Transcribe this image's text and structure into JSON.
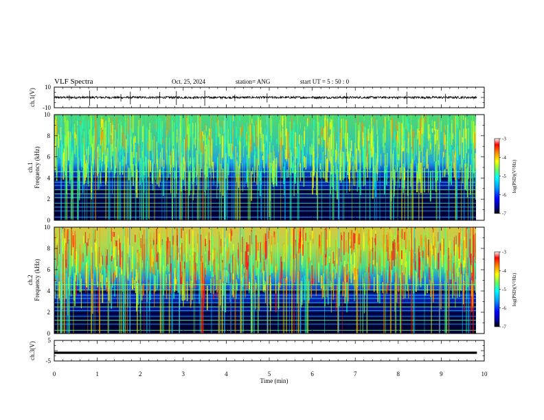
{
  "header": {
    "title": "VLF Spectra",
    "date": "Oct. 25, 2024",
    "station": "station= ANG",
    "start": "start  UT =   5 : 50 : 0"
  },
  "chart_data": [
    {
      "type": "line",
      "name": "ch1-waveform",
      "ylabel": "ch.1(V)",
      "ylim": [
        -10,
        10
      ],
      "ytick_labels": [
        "10",
        "-10"
      ],
      "xlim": [
        0,
        10
      ],
      "baseline": 0,
      "spikes_min": [
        0.35,
        0.82,
        1.55,
        1.77,
        2.45,
        2.84,
        3.5,
        4.2,
        4.95,
        6.8,
        8.2,
        9.1
      ]
    },
    {
      "type": "heatmap",
      "name": "ch1-spectrogram",
      "ylabel_1": "ch.1",
      "ylabel_2": "Frequency (kHz)",
      "ylim": [
        0,
        10
      ],
      "ytick_labels": [
        "0",
        "2",
        "4",
        "6",
        "8",
        "10"
      ],
      "xlim": [
        0,
        9.83
      ],
      "colorbar": {
        "label": "log(PSD)(V²/Hz)",
        "range": [
          -7,
          -3
        ],
        "tick_labels": [
          "-3",
          "-4",
          "-5",
          "-6",
          "-7"
        ]
      },
      "colormap": [
        "#000080",
        "#0000ff",
        "#00a0ff",
        "#00ffff",
        "#60ff60",
        "#ffff00",
        "#ff8000",
        "#ff0000",
        "#ffffff"
      ]
    },
    {
      "type": "heatmap",
      "name": "ch2-spectrogram",
      "ylabel_1": "ch.2",
      "ylabel_2": "Frequency (kHz)",
      "ylim": [
        0,
        10
      ],
      "ytick_labels": [
        "0",
        "2",
        "4",
        "6",
        "8",
        "10"
      ],
      "xlim": [
        0,
        9.83
      ],
      "colorbar": {
        "label": "log(PSD)(V²/Hz)",
        "range": [
          -7,
          -3
        ],
        "tick_labels": [
          "-3",
          "-4",
          "-5",
          "-6",
          "-7"
        ]
      }
    },
    {
      "type": "line",
      "name": "ch3-waveform",
      "ylabel": "ch.3(V)",
      "ylim": [
        -5,
        5
      ],
      "ytick_labels": [
        "5",
        "-5"
      ],
      "xlim": [
        0,
        10
      ],
      "baseline": -1
    }
  ],
  "xaxis": {
    "label": "Time (min)",
    "tick_labels": [
      "0",
      "1",
      "2",
      "3",
      "4",
      "5",
      "6",
      "7",
      "8",
      "9",
      "10"
    ]
  }
}
